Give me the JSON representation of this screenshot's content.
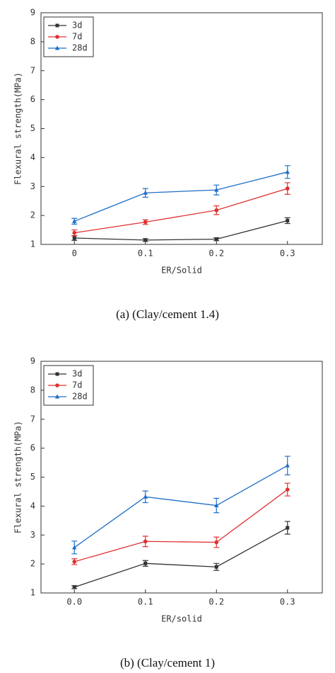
{
  "chart_data": [
    {
      "type": "line",
      "caption": "(a) (Clay/cement 1.4)",
      "xlabel": "ER/Solid",
      "ylabel": "Flexural strength(MPa)",
      "x": [
        0,
        0.1,
        0.2,
        0.3
      ],
      "xlim": [
        -0.047,
        0.349
      ],
      "xticks": [
        0,
        0.1,
        0.2,
        0.3
      ],
      "ylim": [
        1,
        9
      ],
      "yticks": [
        1,
        2,
        3,
        4,
        5,
        6,
        7,
        8,
        9
      ],
      "legend": "upper left",
      "series": [
        {
          "name": "3d",
          "color": "#333333",
          "marker": "square",
          "values": [
            1.22,
            1.15,
            1.18,
            1.82
          ],
          "errors": [
            0.08,
            0.05,
            0.05,
            0.1
          ]
        },
        {
          "name": "7d",
          "color": "#e03030",
          "marker": "circle",
          "values": [
            1.4,
            1.77,
            2.18,
            2.93
          ],
          "errors": [
            0.1,
            0.08,
            0.15,
            0.2
          ]
        },
        {
          "name": "28d",
          "color": "#1f6fc8",
          "marker": "triangle",
          "values": [
            1.8,
            2.78,
            2.88,
            3.5
          ],
          "errors": [
            0.1,
            0.15,
            0.17,
            0.22
          ]
        }
      ]
    },
    {
      "type": "line",
      "caption": "(b) (Clay/cement 1)",
      "xlabel": "ER/solid",
      "ylabel": "Flexural strength(MPa)",
      "x": [
        0,
        0.1,
        0.2,
        0.3
      ],
      "xlim": [
        -0.047,
        0.349
      ],
      "xticks": [
        {
          "value": 0,
          "label": "0.0"
        },
        0.1,
        0.2,
        0.3
      ],
      "ylim": [
        1,
        9
      ],
      "yticks": [
        1,
        2,
        3,
        4,
        5,
        6,
        7,
        8,
        9
      ],
      "legend": "upper left",
      "series": [
        {
          "name": "3d",
          "color": "#333333",
          "marker": "square",
          "values": [
            1.2,
            2.02,
            1.9,
            3.25
          ],
          "errors": [
            0.05,
            0.1,
            0.12,
            0.22
          ]
        },
        {
          "name": "7d",
          "color": "#e03030",
          "marker": "circle",
          "values": [
            2.08,
            2.78,
            2.75,
            4.57
          ],
          "errors": [
            0.1,
            0.18,
            0.18,
            0.22
          ]
        },
        {
          "name": "28d",
          "color": "#1f6fc8",
          "marker": "triangle",
          "values": [
            2.57,
            4.32,
            4.02,
            5.4
          ],
          "errors": [
            0.22,
            0.2,
            0.25,
            0.32
          ]
        }
      ]
    }
  ]
}
